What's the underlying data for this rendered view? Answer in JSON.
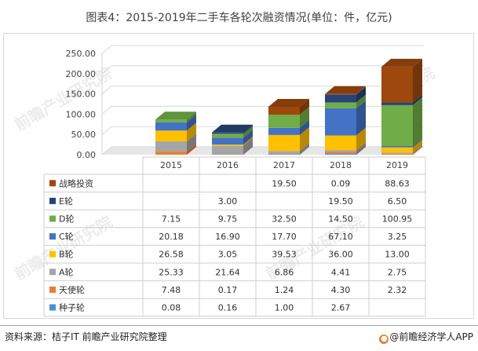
{
  "page": {
    "source": "资料来源：桔子IT 前瞻产业研究院整理",
    "brand": "@前瞻经济学人APP",
    "watermark": "前瞻产业研究院"
  },
  "chart_data": {
    "type": "bar",
    "stacked": true,
    "three_d": true,
    "title": "图表4：2015-2019年二手车各轮次融资情况(单位：件，亿元)",
    "categories": [
      "2015",
      "2016",
      "2017",
      "2018",
      "2019"
    ],
    "ylim": [
      0,
      250
    ],
    "yticks": [
      "0.00",
      "50.00",
      "100.00",
      "150.00",
      "200.00",
      "250.00"
    ],
    "ytick_values": [
      0,
      50,
      100,
      150,
      200,
      250
    ],
    "grid": true,
    "legend": "data-table-below",
    "series": [
      {
        "name": "种子轮",
        "color": "#4a90d0",
        "values": [
          0.08,
          0.16,
          1.0,
          2.67,
          null
        ],
        "labels": [
          "0.08",
          "0.16",
          "1.00",
          "2.67",
          ""
        ]
      },
      {
        "name": "天使轮",
        "color": "#ed7d31",
        "values": [
          7.48,
          0.17,
          1.24,
          4.3,
          2.32
        ],
        "labels": [
          "7.48",
          "0.17",
          "1.24",
          "4.30",
          "2.32"
        ]
      },
      {
        "name": "A轮",
        "color": "#a5a5a5",
        "values": [
          25.33,
          21.64,
          6.86,
          4.41,
          2.75
        ],
        "labels": [
          "25.33",
          "21.64",
          "6.86",
          "4.41",
          "2.75"
        ]
      },
      {
        "name": "B轮",
        "color": "#ffc000",
        "values": [
          26.58,
          3.05,
          39.53,
          36.0,
          13.0
        ],
        "labels": [
          "26.58",
          "3.05",
          "39.53",
          "36.00",
          "13.00"
        ]
      },
      {
        "name": "C轮",
        "color": "#4472c4",
        "values": [
          20.18,
          16.9,
          17.7,
          67.1,
          3.25
        ],
        "labels": [
          "20.18",
          "16.90",
          "17.70",
          "67.10",
          "3.25"
        ]
      },
      {
        "name": "D轮",
        "color": "#70ad47",
        "values": [
          7.15,
          9.75,
          32.5,
          14.5,
          100.95
        ],
        "labels": [
          "7.15",
          "9.75",
          "32.50",
          "14.50",
          "100.95"
        ]
      },
      {
        "name": "E轮",
        "color": "#264478",
        "values": [
          null,
          3.0,
          null,
          19.5,
          6.5
        ],
        "labels": [
          "",
          "3.00",
          "",
          "19.50",
          "6.50"
        ]
      },
      {
        "name": "战略投资",
        "color": "#9e480e",
        "values": [
          null,
          null,
          19.5,
          0.09,
          88.63
        ],
        "labels": [
          "",
          "",
          "19.50",
          "0.09",
          "88.63"
        ]
      }
    ]
  }
}
